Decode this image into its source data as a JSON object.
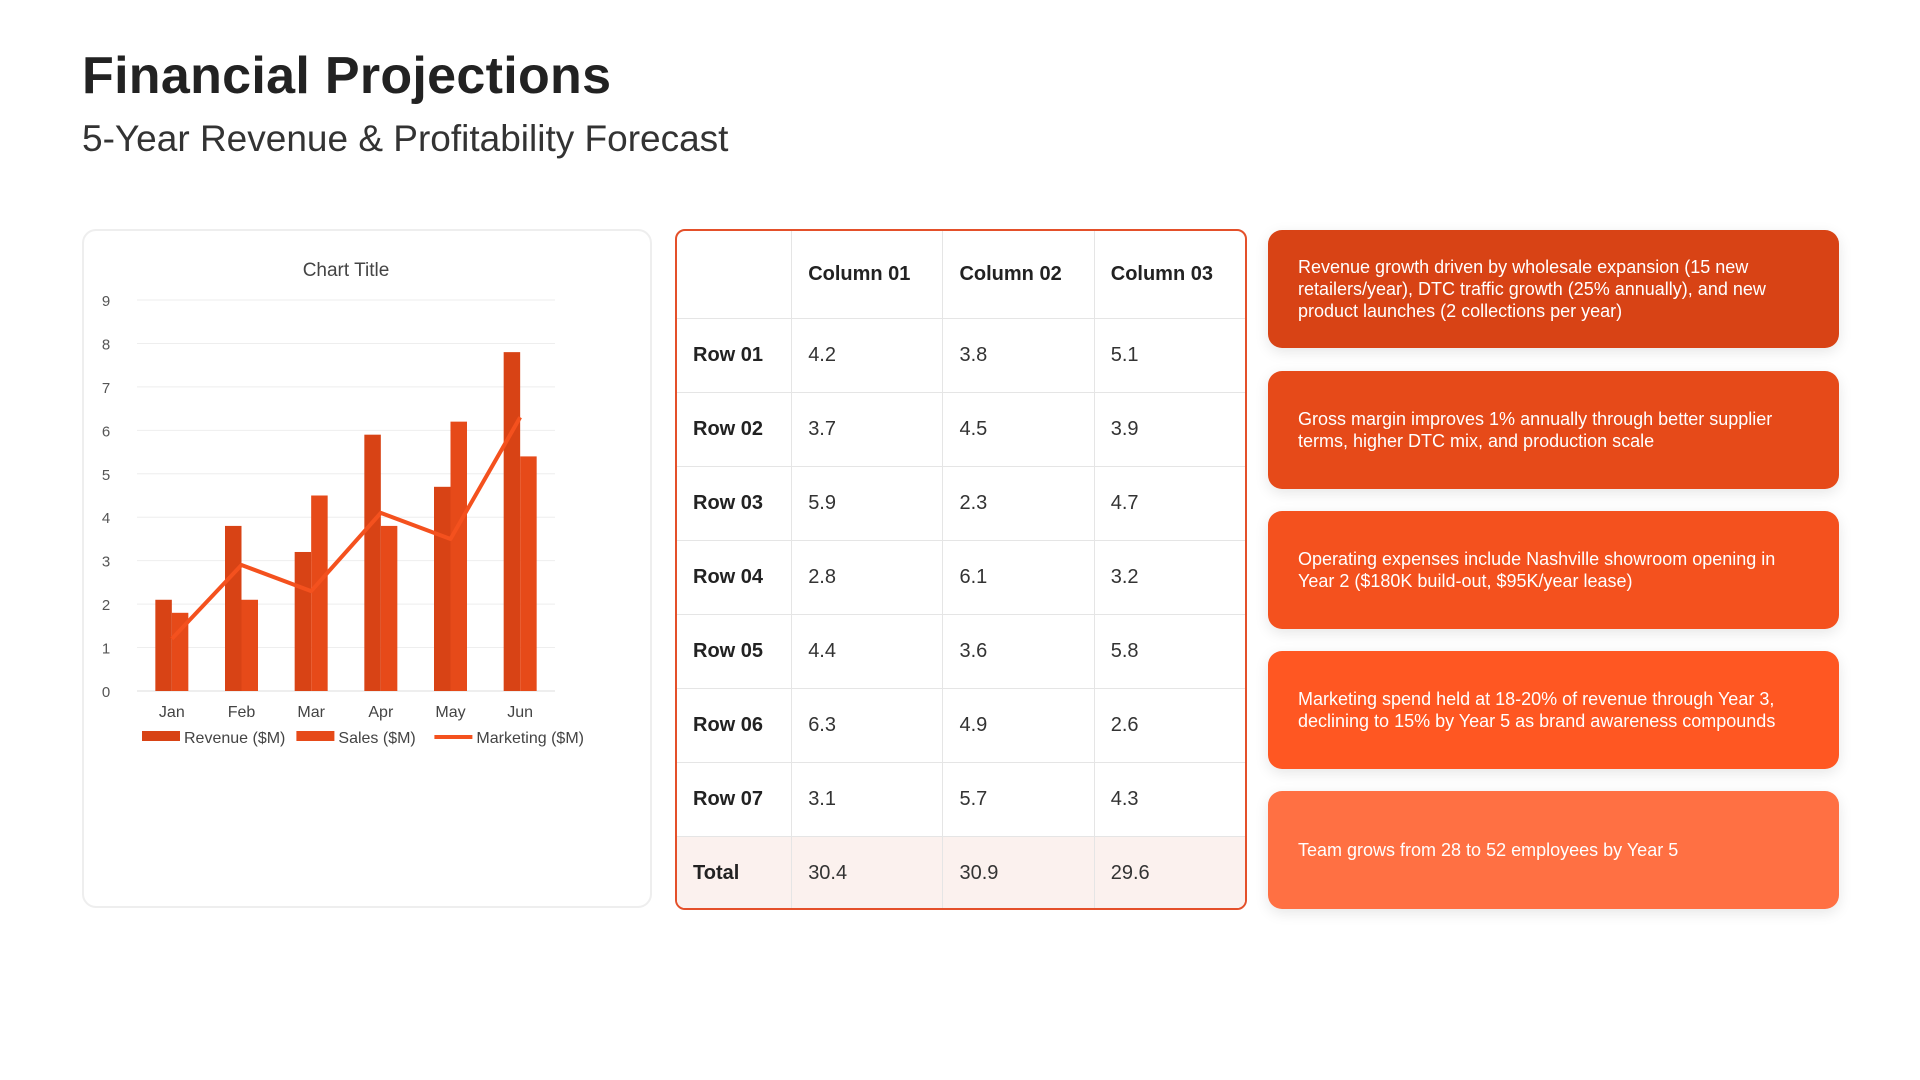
{
  "header": {
    "title": "Financial Projections",
    "subtitle": "5-Year Revenue & Profitability Forecast"
  },
  "chart_data": {
    "type": "bar",
    "title": "Chart Title",
    "categories": [
      "Jan",
      "Feb",
      "Mar",
      "Apr",
      "May",
      "Jun"
    ],
    "series": [
      {
        "name": "Revenue ($M)",
        "type": "bar",
        "color": "#D84315",
        "values": [
          2.1,
          3.8,
          3.2,
          5.9,
          4.7,
          7.8
        ]
      },
      {
        "name": "Sales ($M)",
        "type": "bar",
        "color": "#E64A19",
        "values": [
          1.8,
          2.1,
          4.5,
          3.8,
          6.2,
          5.4
        ]
      },
      {
        "name": "Marketing ($M)",
        "type": "line",
        "color": "#F4511E",
        "values": [
          1.2,
          2.9,
          2.3,
          4.1,
          3.5,
          6.3
        ]
      }
    ],
    "ylim": [
      0,
      9
    ],
    "yticks": [
      "0",
      "1",
      "2",
      "3",
      "4",
      "5",
      "6",
      "7",
      "8",
      "9"
    ],
    "grid": true,
    "legend": "bottom"
  },
  "table": {
    "headers": [
      "",
      "Column 01",
      "Column 02",
      "Column 03"
    ],
    "rows": [
      [
        "Row 01",
        "4.2",
        "3.8",
        "5.1"
      ],
      [
        "Row 02",
        "3.7",
        "4.5",
        "3.9"
      ],
      [
        "Row 03",
        "5.9",
        "2.3",
        "4.7"
      ],
      [
        "Row 04",
        "2.8",
        "6.1",
        "3.2"
      ],
      [
        "Row 05",
        "4.4",
        "3.6",
        "5.8"
      ],
      [
        "Row 06",
        "6.3",
        "4.9",
        "2.6"
      ],
      [
        "Row 07",
        "3.1",
        "5.7",
        "4.3"
      ]
    ],
    "total": [
      "Total",
      "30.4",
      "30.9",
      "29.6"
    ],
    "accent": "#E4502A"
  },
  "notes": [
    {
      "text": "Revenue growth driven by wholesale expansion (15 new retailers/year), DTC traffic growth (25% annually), and new product launches (2 collections per year)",
      "color": "#D84315"
    },
    {
      "text": "Gross margin improves 1% annually through better supplier terms, higher DTC mix, and production scale",
      "color": "#E64A19"
    },
    {
      "text": "Operating expenses include Nashville showroom opening in Year 2 ($180K build-out, $95K/year lease)",
      "color": "#F4511E"
    },
    {
      "text": "Marketing spend held at 18-20% of revenue through Year 3, declining to 15% by Year 5 as brand awareness compounds",
      "color": "#FF5722"
    },
    {
      "text": "Team grows from 28 to 52 employees by Year 5",
      "color": "#FF7043"
    }
  ]
}
